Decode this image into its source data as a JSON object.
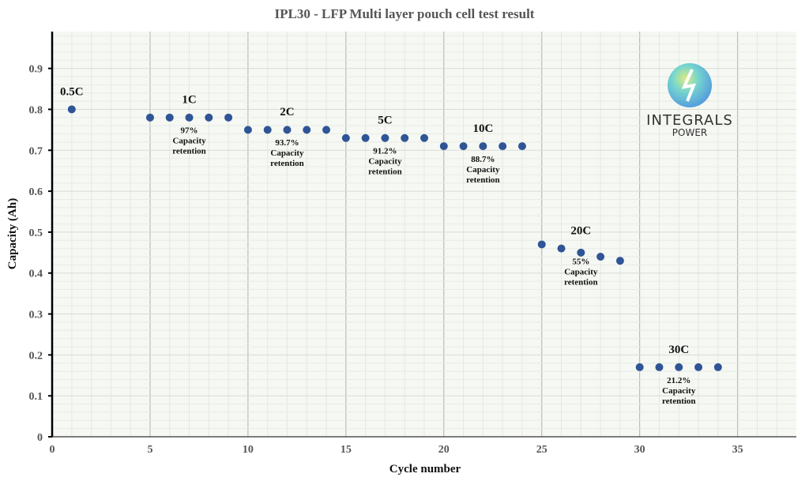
{
  "chart_data": {
    "type": "scatter",
    "title": "IPL30 - LFP Multi layer pouch cell test result",
    "xlabel": "Cycle number",
    "ylabel": "Capacity (Ah)",
    "xlim": [
      0,
      38
    ],
    "ylim": [
      0,
      0.99
    ],
    "xticks": [
      0,
      5,
      10,
      15,
      20,
      25,
      30,
      35
    ],
    "yticks": [
      0,
      0.1,
      0.2,
      0.3,
      0.4,
      0.5,
      0.6,
      0.7,
      0.8,
      0.9
    ],
    "grid": true,
    "marker_color": "#2f5597",
    "x": [
      1,
      5,
      6,
      7,
      8,
      9,
      10,
      11,
      12,
      13,
      14,
      15,
      16,
      17,
      18,
      19,
      20,
      21,
      22,
      23,
      24,
      25,
      26,
      27,
      28,
      29,
      30,
      31,
      32,
      33,
      34
    ],
    "y": [
      0.8,
      0.78,
      0.78,
      0.78,
      0.78,
      0.78,
      0.75,
      0.75,
      0.75,
      0.75,
      0.75,
      0.73,
      0.73,
      0.73,
      0.73,
      0.73,
      0.71,
      0.71,
      0.71,
      0.71,
      0.71,
      0.47,
      0.46,
      0.45,
      0.44,
      0.43,
      0.17,
      0.17,
      0.17,
      0.17,
      0.17
    ],
    "annotations": [
      {
        "rate": "0.5C",
        "x": 1,
        "y": 0.835,
        "retention": []
      },
      {
        "rate": "1C",
        "x": 7,
        "y": 0.815,
        "retention": [
          "97%",
          "Capacity",
          "retention"
        ]
      },
      {
        "rate": "2C",
        "x": 12,
        "y": 0.785,
        "retention": [
          "93.7%",
          "Capacity",
          "retention"
        ]
      },
      {
        "rate": "5C",
        "x": 17,
        "y": 0.765,
        "retention": [
          "91.2%",
          "Capacity",
          "retention"
        ]
      },
      {
        "rate": "10C",
        "x": 22,
        "y": 0.745,
        "retention": [
          "88.7%",
          "Capacity",
          "retention"
        ]
      },
      {
        "rate": "20C",
        "x": 27,
        "y": 0.495,
        "retention": [
          "55%",
          "Capacity",
          "retention"
        ]
      },
      {
        "rate": "30C",
        "x": 32,
        "y": 0.205,
        "retention": [
          "21.2%",
          "Capacity",
          "retention"
        ]
      }
    ]
  },
  "logo": {
    "line1": "INTEGRALS",
    "line2": "POWER"
  }
}
